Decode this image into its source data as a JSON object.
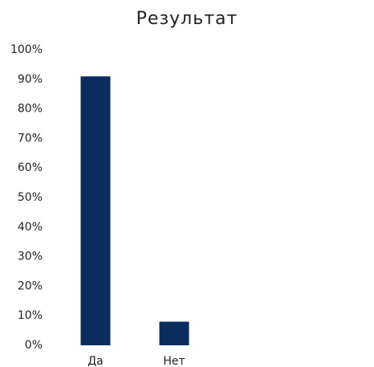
{
  "chart_data": {
    "type": "bar",
    "title": "Результат",
    "categories": [
      "Да",
      "Нет"
    ],
    "values": [
      91,
      8
    ],
    "color": "#0b2d5e",
    "ylim": [
      0,
      100
    ],
    "yticks": [
      {
        "value": 0,
        "label": "0%"
      },
      {
        "value": 10,
        "label": "10%"
      },
      {
        "value": 20,
        "label": "20%"
      },
      {
        "value": 30,
        "label": "30%"
      },
      {
        "value": 40,
        "label": "40%"
      },
      {
        "value": 50,
        "label": "50%"
      },
      {
        "value": 60,
        "label": "60%"
      },
      {
        "value": 70,
        "label": "70%"
      },
      {
        "value": 80,
        "label": "80%"
      },
      {
        "value": 90,
        "label": "90%"
      },
      {
        "value": 100,
        "label": "100%"
      }
    ],
    "grid": false
  }
}
